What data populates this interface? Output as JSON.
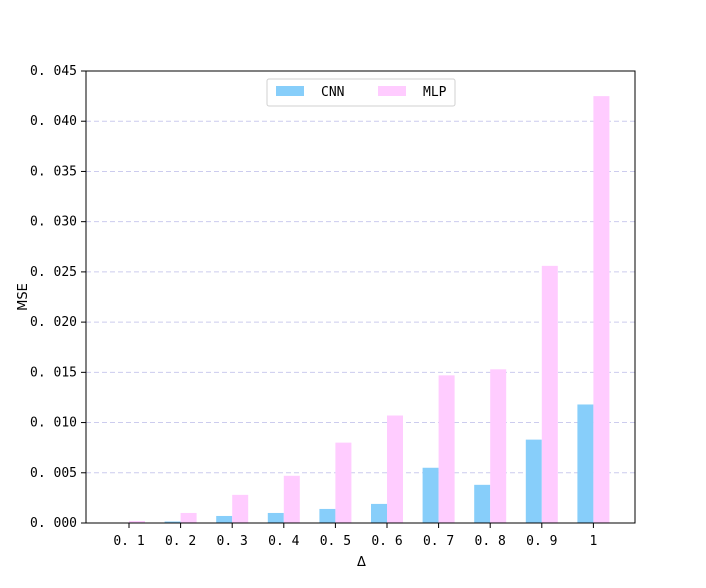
{
  "chart_data": {
    "type": "bar",
    "title": "",
    "xlabel": "Δ",
    "ylabel": "MSE",
    "categories": [
      "0. 1",
      "0. 2",
      "0. 3",
      "0. 4",
      "0. 5",
      "0. 6",
      "0. 7",
      "0. 8",
      "0. 9",
      "1"
    ],
    "series": [
      {
        "name": "CNN",
        "color": "#87CEFA",
        "values": [
          2e-05,
          0.00015,
          0.0007,
          0.001,
          0.0014,
          0.0019,
          0.0055,
          0.0038,
          0.0083,
          0.0118
        ]
      },
      {
        "name": "MLP",
        "color": "#FFCCFF",
        "values": [
          0.0002,
          0.001,
          0.0028,
          0.0047,
          0.008,
          0.0107,
          0.0147,
          0.0153,
          0.0256,
          0.0425
        ]
      }
    ],
    "ylim": [
      0,
      0.045
    ],
    "yticks": [
      "0. 000",
      "0. 005",
      "0. 010",
      "0. 015",
      "0. 020",
      "0. 025",
      "0. 030",
      "0. 035",
      "0. 040",
      "0. 045"
    ],
    "grid": "horizontal-dashed",
    "grid_color": "#ccccee",
    "legend": "top-center"
  }
}
